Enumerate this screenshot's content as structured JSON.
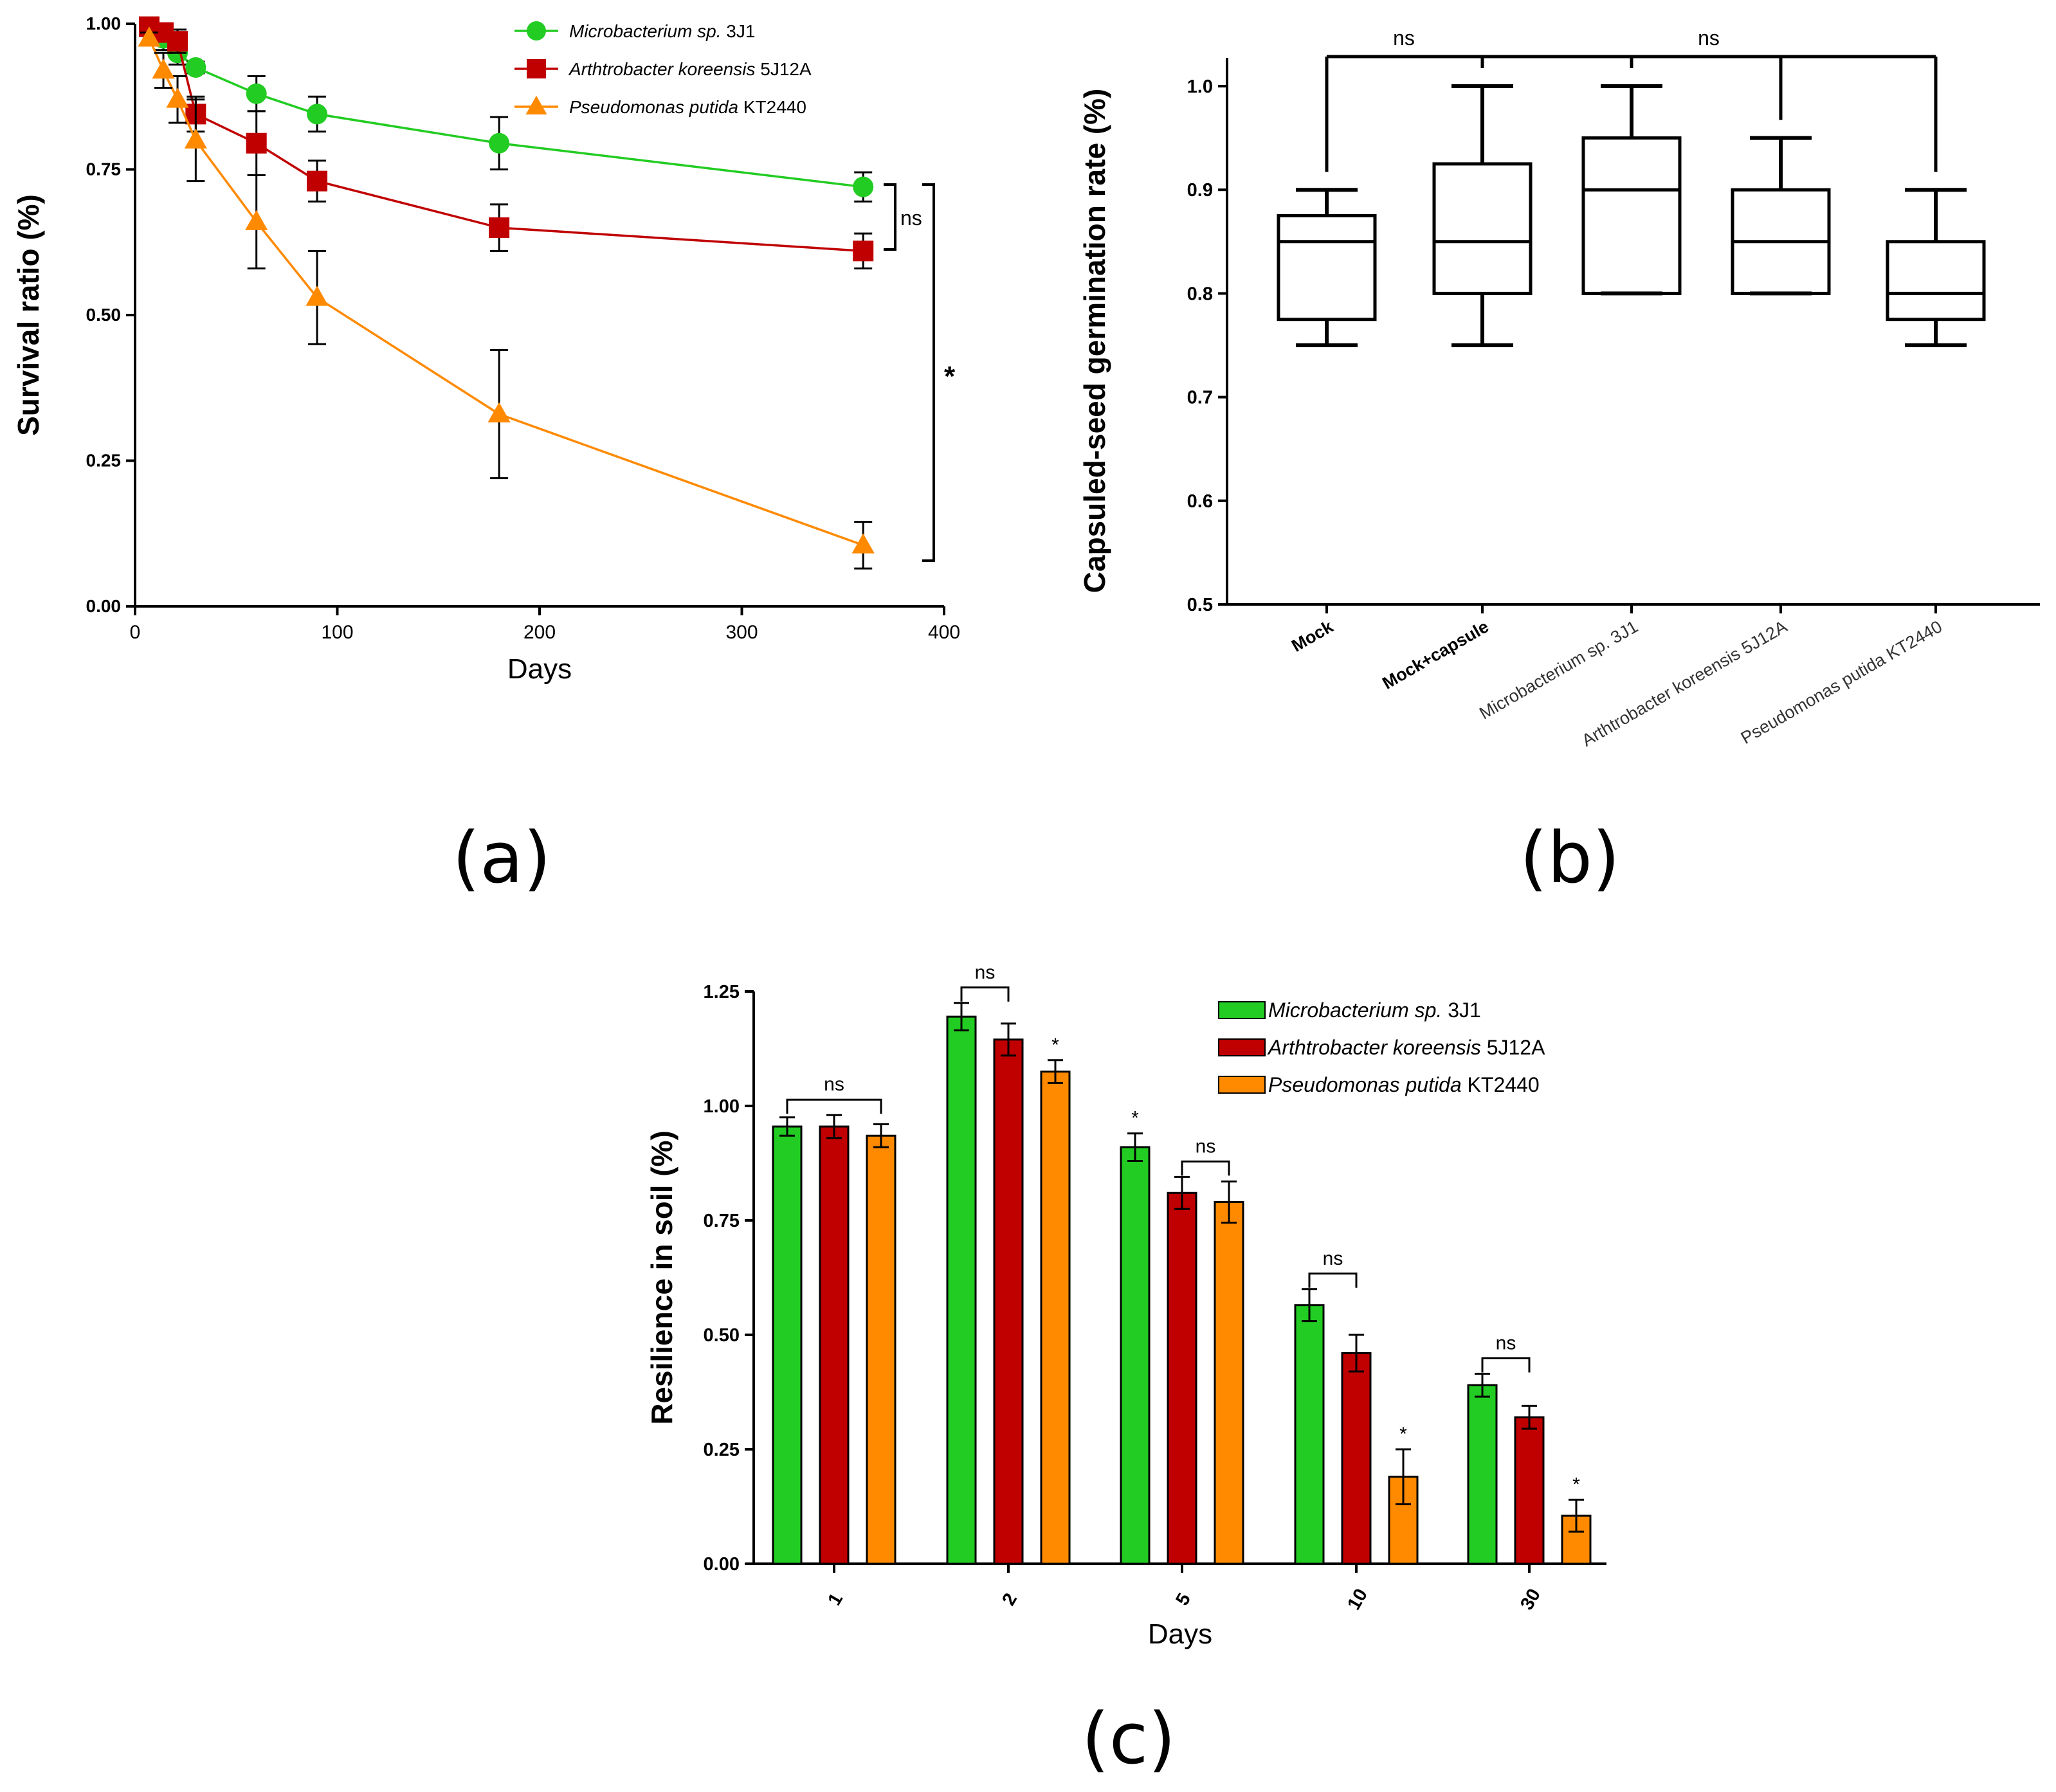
{
  "panel_labels": {
    "a": "(a)",
    "b": "(b)",
    "c": "(c)"
  },
  "legend_entries": [
    {
      "italic": "Microbacterium sp.",
      "strain": "3J1",
      "color": "#22cc22",
      "marker": "circle"
    },
    {
      "italic": "Arthtrobacter koreensis",
      "strain": "5J12A",
      "color": "#c00000",
      "marker": "square"
    },
    {
      "italic": "Pseudomonas putida",
      "strain": "KT2440",
      "color": "#ff8a00",
      "marker": "triangle"
    }
  ],
  "chart_data": [
    {
      "id": "a",
      "type": "line",
      "xlabel": "Days",
      "ylabel": "Survival ratio (%)",
      "xlim": [
        0,
        400
      ],
      "ylim": [
        0,
        1
      ],
      "xticks": [
        0,
        100,
        200,
        300,
        400
      ],
      "xtick_labels": [
        "0",
        "100",
        "200",
        "300",
        "400"
      ],
      "yticks": [
        0,
        0.25,
        0.5,
        0.75,
        1
      ],
      "ytick_labels": [
        "0.00",
        "0.25",
        "0.50",
        "0.75",
        "1.00"
      ],
      "series": [
        {
          "name": "Microbacterium sp. 3J1",
          "color": "#22cc22",
          "marker": "circle",
          "x": [
            7,
            14,
            21,
            30,
            60,
            90,
            180,
            360
          ],
          "y": [
            0.99,
            0.975,
            0.95,
            0.925,
            0.88,
            0.845,
            0.795,
            0.72
          ],
          "err": [
            0.01,
            0.02,
            0.02,
            0.01,
            0.03,
            0.03,
            0.045,
            0.025
          ]
        },
        {
          "name": "Arthtrobacter koreensis 5J12A",
          "color": "#c00000",
          "marker": "square",
          "x": [
            7,
            14,
            21,
            30,
            60,
            90,
            180,
            360
          ],
          "y": [
            0.995,
            0.985,
            0.97,
            0.845,
            0.795,
            0.73,
            0.65,
            0.61
          ],
          "err": [
            0.01,
            0.015,
            0.02,
            0.03,
            0.055,
            0.035,
            0.04,
            0.03
          ]
        },
        {
          "name": "Pseudomonas putida KT2440",
          "color": "#ff8a00",
          "marker": "triangle",
          "x": [
            7,
            14,
            21,
            30,
            60,
            90,
            180,
            360
          ],
          "y": [
            0.975,
            0.92,
            0.87,
            0.8,
            0.66,
            0.53,
            0.33,
            0.105
          ],
          "err": [
            0.01,
            0.03,
            0.04,
            0.07,
            0.08,
            0.08,
            0.11,
            0.04
          ]
        }
      ],
      "annotations": [
        {
          "text": "ns",
          "between": [
            "Microbacterium sp. 3J1",
            "Arthtrobacter koreensis 5J12A"
          ],
          "at_x": 360
        },
        {
          "text": "*",
          "between": [
            "Microbacterium sp. 3J1",
            "Pseudomonas putida KT2440"
          ],
          "at_x": 360
        }
      ]
    },
    {
      "id": "b",
      "type": "box",
      "ylabel": "Capsuled-seed germination rate (%)",
      "ylim": [
        0.5,
        1.0
      ],
      "yticks": [
        0.5,
        0.6,
        0.7,
        0.8,
        0.9,
        1.0
      ],
      "ytick_labels": [
        "0.5",
        "0.6",
        "0.7",
        "0.8",
        "0.9",
        "1.0"
      ],
      "categories": [
        "Mock",
        "Mock+capsule",
        "Microbacterium sp. 3J1",
        "Arthtrobacter koreensis 5J12A",
        "Pseudomonas putida KT2440"
      ],
      "boxes": [
        {
          "min": 0.75,
          "q1": 0.775,
          "median": 0.85,
          "q3": 0.875,
          "max": 0.9
        },
        {
          "min": 0.75,
          "q1": 0.8,
          "median": 0.85,
          "q3": 0.925,
          "max": 1.0
        },
        {
          "min": 0.8,
          "q1": 0.8,
          "median": 0.9,
          "q3": 0.95,
          "max": 1.0
        },
        {
          "min": 0.8,
          "q1": 0.8,
          "median": 0.85,
          "q3": 0.9,
          "max": 0.95
        },
        {
          "min": 0.75,
          "q1": 0.775,
          "median": 0.8,
          "q3": 0.85,
          "max": 0.9
        }
      ],
      "annotations": [
        {
          "text": "ns",
          "between": [
            "Mock",
            "Microbacterium sp. 3J1"
          ]
        },
        {
          "text": "ns",
          "between": [
            "Microbacterium sp. 3J1",
            "Pseudomonas putida KT2440"
          ]
        }
      ]
    },
    {
      "id": "c",
      "type": "bar",
      "xlabel": "Days",
      "ylabel": "Resilience in soil (%)",
      "ylim": [
        0,
        1.25
      ],
      "yticks": [
        0,
        0.25,
        0.5,
        0.75,
        1,
        1.25
      ],
      "ytick_labels": [
        "0.00",
        "0.25",
        "0.50",
        "0.75",
        "1.00",
        "1.25"
      ],
      "categories": [
        "1",
        "2",
        "5",
        "10",
        "30"
      ],
      "series": [
        {
          "name": "Microbacterium sp. 3J1",
          "color": "#22cc22",
          "values": [
            0.955,
            1.195,
            0.91,
            0.565,
            0.39
          ],
          "err": [
            0.02,
            0.03,
            0.03,
            0.035,
            0.025
          ]
        },
        {
          "name": "Arthtrobacter koreensis 5J12A",
          "color": "#c00000",
          "values": [
            0.955,
            1.145,
            0.81,
            0.46,
            0.32
          ],
          "err": [
            0.025,
            0.035,
            0.035,
            0.04,
            0.025
          ]
        },
        {
          "name": "Pseudomonas putida KT2440",
          "color": "#ff8a00",
          "values": [
            0.935,
            1.075,
            0.79,
            0.19,
            0.105
          ],
          "err": [
            0.025,
            0.025,
            0.045,
            0.06,
            0.035
          ]
        }
      ],
      "annotations": [
        {
          "text": "ns",
          "category": "1",
          "between": [
            0,
            2
          ]
        },
        {
          "text": "ns",
          "category": "2",
          "between": [
            0,
            1
          ]
        },
        {
          "text": "*",
          "category": "2",
          "over": 2
        },
        {
          "text": "*",
          "category": "5",
          "over": 0
        },
        {
          "text": "ns",
          "category": "5",
          "between": [
            1,
            2
          ]
        },
        {
          "text": "ns",
          "category": "10",
          "between": [
            0,
            1
          ]
        },
        {
          "text": "*",
          "category": "10",
          "over": 2
        },
        {
          "text": "ns",
          "category": "30",
          "between": [
            0,
            1
          ]
        },
        {
          "text": "*",
          "category": "30",
          "over": 2
        }
      ]
    }
  ]
}
